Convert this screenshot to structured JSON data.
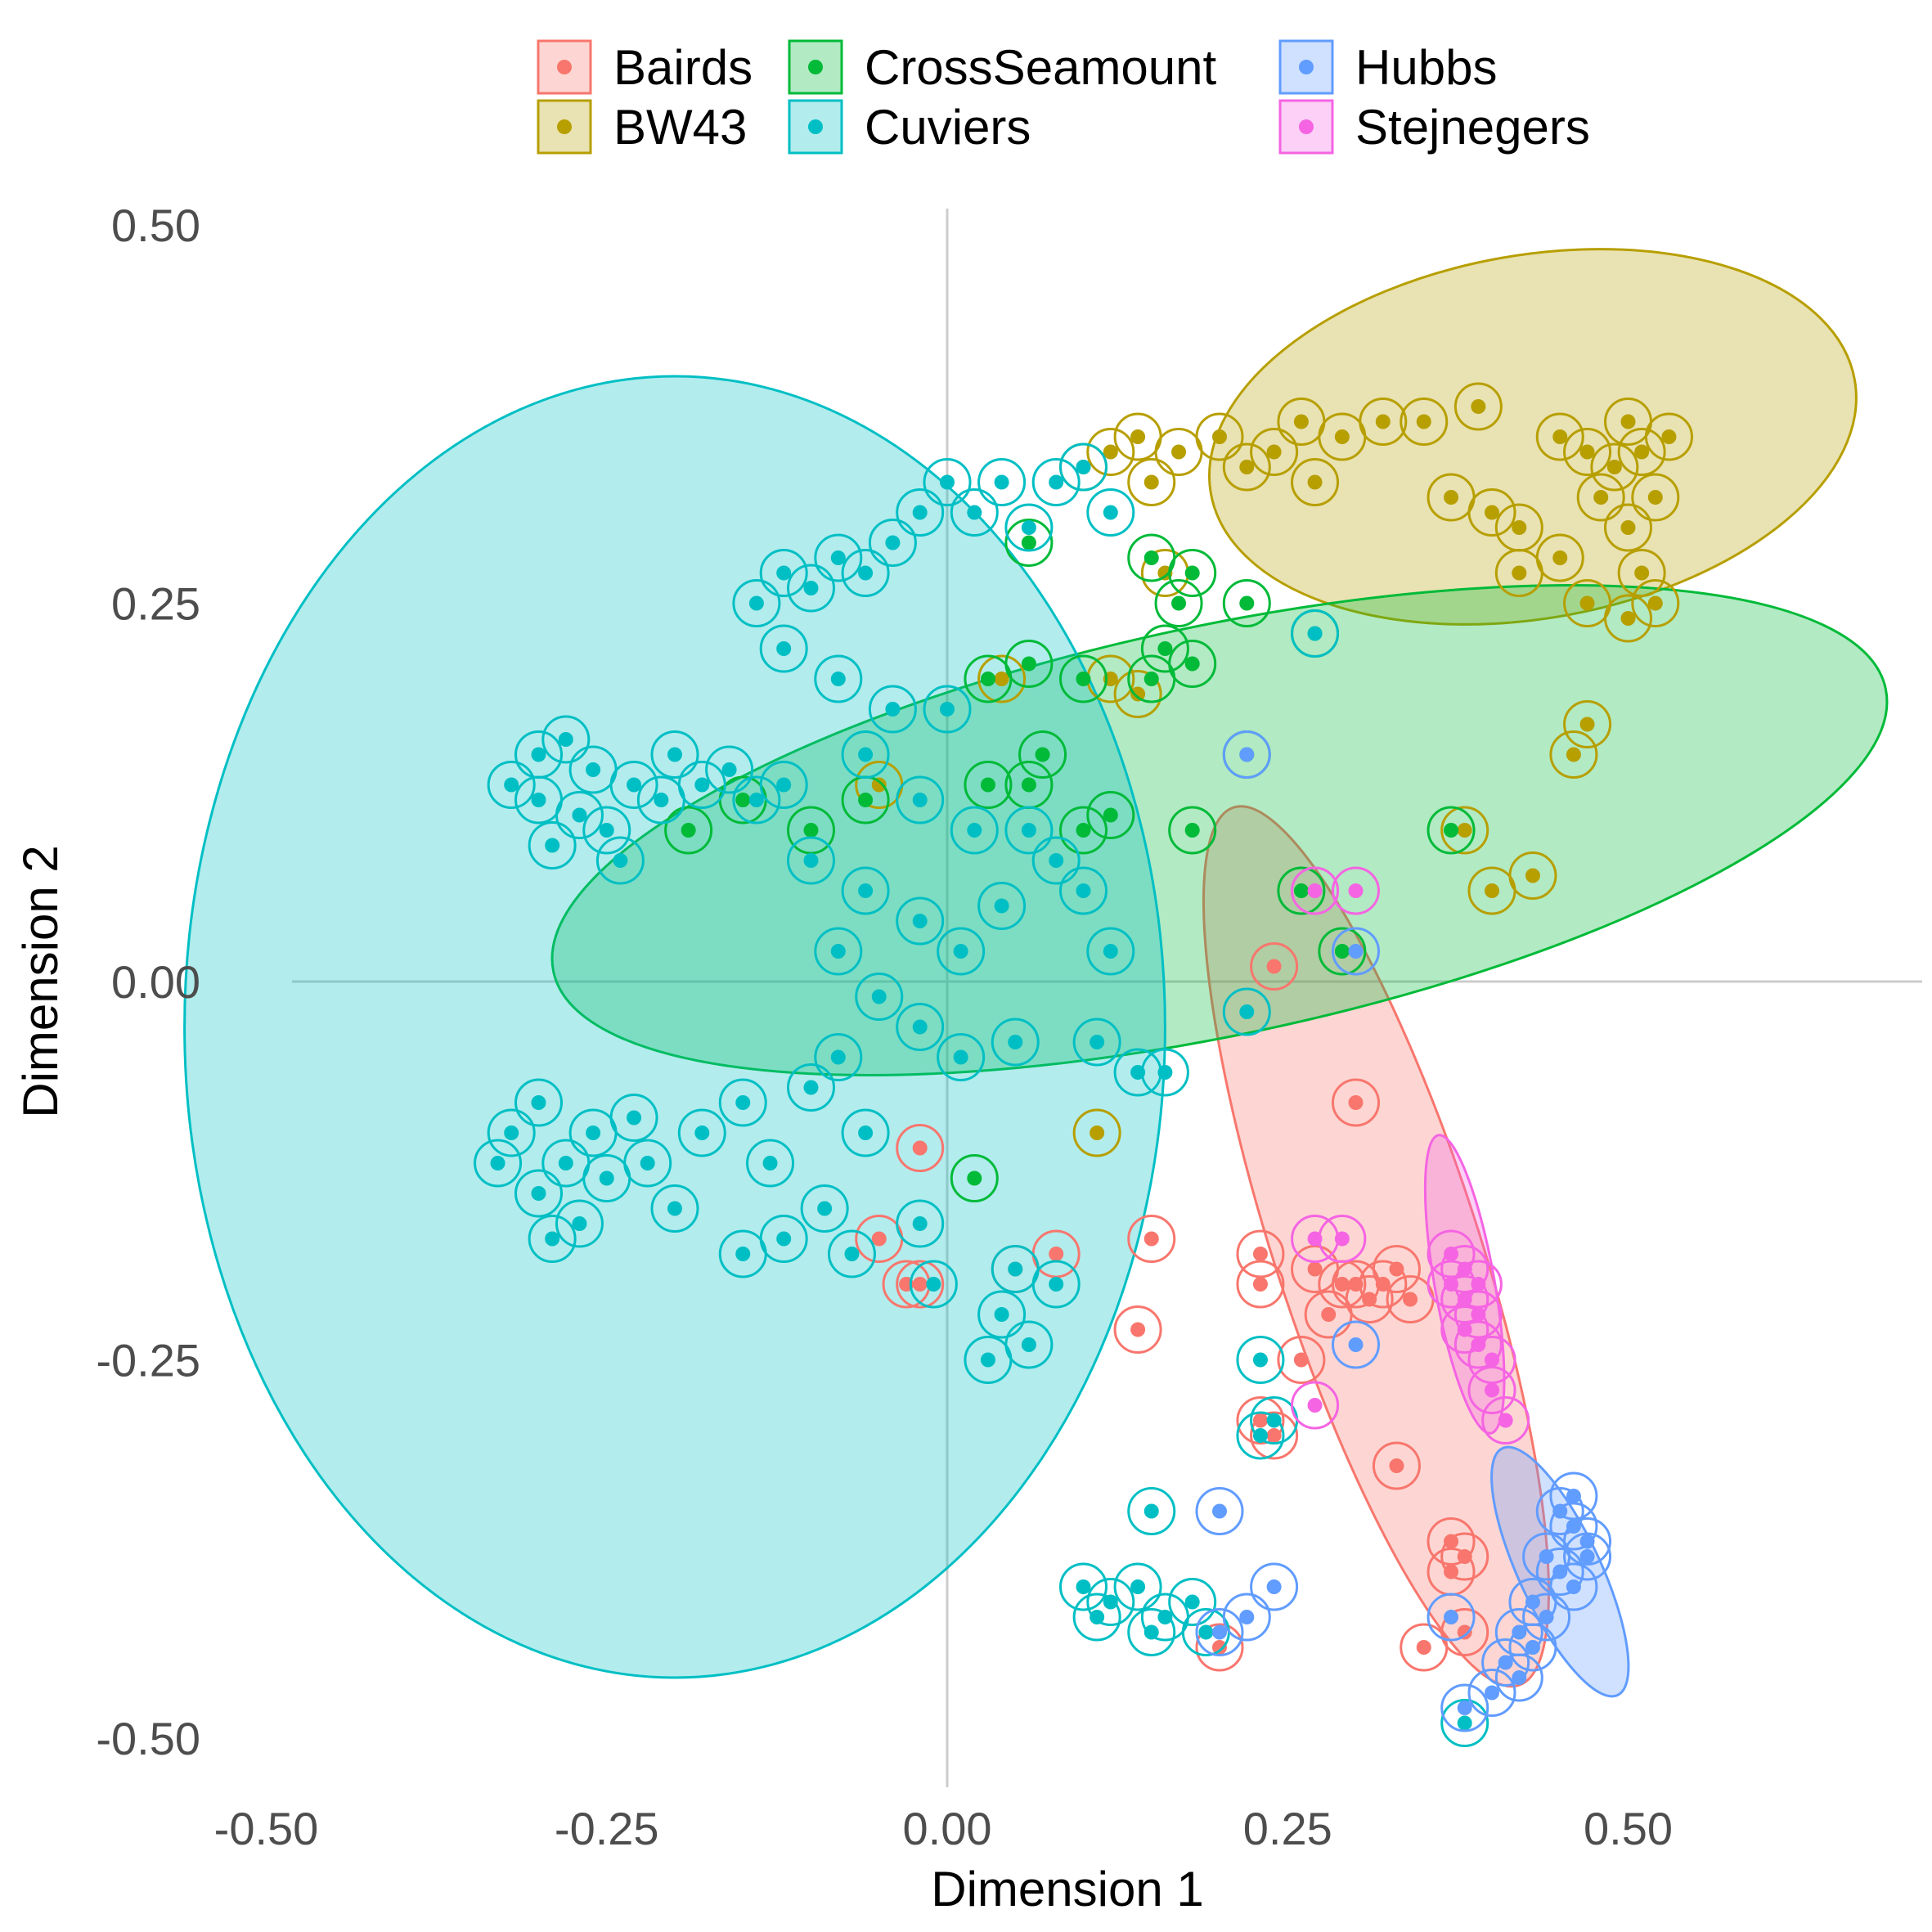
{
  "chart_data": {
    "type": "scatter",
    "title": "",
    "xlabel": "Dimension 1",
    "ylabel": "Dimension 2",
    "xlim": [
      -0.5,
      0.5
    ],
    "ylim": [
      -0.5,
      0.5
    ],
    "x_ticks": [
      "-0.50",
      "-0.25",
      "0.00",
      "0.25",
      "0.50"
    ],
    "y_ticks": [
      "0.50",
      "0.25",
      "0.00",
      "-0.25",
      "-0.50"
    ],
    "grid": false,
    "zero_lines": true,
    "legend_position": "top",
    "series": [
      {
        "name": "Bairds",
        "color": "#F8766D",
        "ellipse": {
          "cx": 0.315,
          "cy": -0.175,
          "rx": 0.075,
          "ry": 0.305,
          "angle": 18
        },
        "points": [
          [
            -0.02,
            -0.11
          ],
          [
            -0.05,
            -0.17
          ],
          [
            -0.03,
            -0.2
          ],
          [
            -0.02,
            -0.2
          ],
          [
            0.05,
            -0.19
          ],
          [
            0.08,
            -0.18
          ],
          [
            0.15,
            -0.17
          ],
          [
            0.14,
            -0.23
          ],
          [
            0.3,
            -0.08
          ],
          [
            0.23,
            -0.18
          ],
          [
            0.23,
            -0.2
          ],
          [
            0.27,
            -0.19
          ],
          [
            0.29,
            -0.2
          ],
          [
            0.3,
            -0.2
          ],
          [
            0.31,
            -0.21
          ],
          [
            0.32,
            -0.2
          ],
          [
            0.33,
            -0.19
          ],
          [
            0.34,
            -0.21
          ],
          [
            0.28,
            -0.22
          ],
          [
            0.26,
            -0.25
          ],
          [
            0.23,
            -0.29
          ],
          [
            0.24,
            -0.3
          ],
          [
            0.33,
            -0.32
          ],
          [
            0.37,
            -0.37
          ],
          [
            0.38,
            -0.38
          ],
          [
            0.35,
            -0.44
          ],
          [
            0.38,
            -0.43
          ],
          [
            0.37,
            -0.39
          ],
          [
            0.2,
            -0.44
          ],
          [
            0.24,
            0.01
          ]
        ]
      },
      {
        "name": "BW43",
        "color": "#B79F00",
        "ellipse": {
          "cx": 0.43,
          "cy": 0.36,
          "rx": 0.24,
          "ry": 0.12,
          "angle": 10
        },
        "points": [
          [
            0.1,
            0.34
          ],
          [
            0.12,
            0.35
          ],
          [
            0.14,
            0.36
          ],
          [
            0.15,
            0.33
          ],
          [
            0.17,
            0.35
          ],
          [
            0.2,
            0.36
          ],
          [
            0.22,
            0.34
          ],
          [
            0.24,
            0.35
          ],
          [
            0.26,
            0.37
          ],
          [
            0.27,
            0.33
          ],
          [
            0.29,
            0.36
          ],
          [
            0.32,
            0.37
          ],
          [
            0.35,
            0.37
          ],
          [
            0.37,
            0.32
          ],
          [
            0.39,
            0.38
          ],
          [
            0.4,
            0.31
          ],
          [
            0.42,
            0.3
          ],
          [
            0.45,
            0.36
          ],
          [
            0.47,
            0.35
          ],
          [
            0.49,
            0.34
          ],
          [
            0.5,
            0.37
          ],
          [
            0.51,
            0.35
          ],
          [
            0.52,
            0.32
          ],
          [
            0.53,
            0.36
          ],
          [
            0.48,
            0.32
          ],
          [
            0.5,
            0.3
          ],
          [
            0.51,
            0.27
          ],
          [
            0.52,
            0.25
          ],
          [
            0.45,
            0.28
          ],
          [
            0.42,
            0.27
          ],
          [
            0.47,
            0.25
          ],
          [
            0.5,
            0.24
          ],
          [
            0.47,
            0.17
          ],
          [
            0.46,
            0.15
          ],
          [
            0.4,
            0.06
          ],
          [
            0.43,
            0.07
          ],
          [
            0.38,
            0.1
          ],
          [
            0.12,
            0.2
          ],
          [
            0.14,
            0.19
          ],
          [
            0.04,
            0.2
          ],
          [
            -0.05,
            0.13
          ],
          [
            0.11,
            -0.1
          ],
          [
            0.16,
            0.27
          ]
        ]
      },
      {
        "name": "CrossSeamount",
        "color": "#00BA38",
        "ellipse": {
          "cx": 0.2,
          "cy": 0.1,
          "rx": 0.5,
          "ry": 0.135,
          "angle": 12
        },
        "points": [
          [
            0.06,
            0.29
          ],
          [
            0.15,
            0.28
          ],
          [
            0.18,
            0.27
          ],
          [
            0.17,
            0.25
          ],
          [
            0.16,
            0.22
          ],
          [
            0.18,
            0.21
          ],
          [
            0.15,
            0.2
          ],
          [
            0.1,
            0.2
          ],
          [
            0.06,
            0.21
          ],
          [
            0.03,
            0.2
          ],
          [
            0.27,
            0.23
          ],
          [
            0.22,
            0.15
          ],
          [
            0.07,
            0.15
          ],
          [
            0.06,
            0.13
          ],
          [
            0.03,
            0.13
          ],
          [
            -0.06,
            0.12
          ],
          [
            -0.1,
            0.1
          ],
          [
            -0.15,
            0.12
          ],
          [
            -0.19,
            0.1
          ],
          [
            0.1,
            0.1
          ],
          [
            0.12,
            0.11
          ],
          [
            0.18,
            0.1
          ],
          [
            0.37,
            0.1
          ],
          [
            0.26,
            0.06
          ],
          [
            0.29,
            0.02
          ],
          [
            0.02,
            -0.13
          ],
          [
            0.22,
            0.25
          ]
        ]
      },
      {
        "name": "Cuviers",
        "color": "#00BFC4",
        "ellipse": {
          "cx": -0.2,
          "cy": -0.03,
          "rx": 0.36,
          "ry": 0.43,
          "angle": 0
        },
        "points": [
          [
            -0.3,
            0.15
          ],
          [
            -0.28,
            0.16
          ],
          [
            -0.26,
            0.14
          ],
          [
            -0.3,
            0.12
          ],
          [
            -0.27,
            0.11
          ],
          [
            -0.29,
            0.09
          ],
          [
            -0.25,
            0.1
          ],
          [
            -0.23,
            0.13
          ],
          [
            -0.21,
            0.12
          ],
          [
            -0.2,
            0.15
          ],
          [
            -0.18,
            0.13
          ],
          [
            -0.16,
            0.14
          ],
          [
            -0.14,
            0.12
          ],
          [
            -0.12,
            0.13
          ],
          [
            -0.32,
            0.13
          ],
          [
            -0.24,
            0.08
          ],
          [
            -0.3,
            -0.08
          ],
          [
            -0.32,
            -0.1
          ],
          [
            -0.28,
            -0.12
          ],
          [
            -0.3,
            -0.14
          ],
          [
            -0.26,
            -0.1
          ],
          [
            -0.25,
            -0.13
          ],
          [
            -0.27,
            -0.16
          ],
          [
            -0.23,
            -0.09
          ],
          [
            -0.22,
            -0.12
          ],
          [
            -0.2,
            -0.15
          ],
          [
            -0.18,
            -0.1
          ],
          [
            -0.15,
            -0.08
          ],
          [
            -0.13,
            -0.12
          ],
          [
            -0.1,
            -0.07
          ],
          [
            -0.08,
            -0.05
          ],
          [
            -0.06,
            -0.1
          ],
          [
            -0.12,
            -0.17
          ],
          [
            -0.09,
            -0.15
          ],
          [
            -0.07,
            -0.18
          ],
          [
            -0.15,
            -0.18
          ],
          [
            -0.33,
            -0.12
          ],
          [
            -0.29,
            -0.17
          ],
          [
            -0.14,
            0.25
          ],
          [
            -0.12,
            0.27
          ],
          [
            -0.1,
            0.26
          ],
          [
            -0.08,
            0.28
          ],
          [
            -0.06,
            0.27
          ],
          [
            -0.04,
            0.29
          ],
          [
            -0.02,
            0.31
          ],
          [
            0.0,
            0.33
          ],
          [
            0.02,
            0.31
          ],
          [
            0.04,
            0.33
          ],
          [
            0.06,
            0.3
          ],
          [
            0.08,
            0.33
          ],
          [
            0.1,
            0.34
          ],
          [
            -0.12,
            0.22
          ],
          [
            -0.08,
            0.2
          ],
          [
            -0.04,
            0.18
          ],
          [
            0.0,
            0.18
          ],
          [
            -0.06,
            0.15
          ],
          [
            -0.02,
            0.12
          ],
          [
            0.02,
            0.1
          ],
          [
            -0.1,
            0.08
          ],
          [
            -0.06,
            0.06
          ],
          [
            -0.02,
            0.04
          ],
          [
            0.01,
            0.02
          ],
          [
            0.04,
            0.05
          ],
          [
            0.06,
            0.1
          ],
          [
            0.08,
            0.08
          ],
          [
            -0.08,
            0.02
          ],
          [
            -0.05,
            -0.01
          ],
          [
            -0.02,
            -0.03
          ],
          [
            0.01,
            -0.05
          ],
          [
            0.05,
            -0.04
          ],
          [
            0.1,
            0.06
          ],
          [
            0.12,
            0.02
          ],
          [
            0.11,
            -0.04
          ],
          [
            0.14,
            -0.06
          ],
          [
            0.16,
            -0.06
          ],
          [
            0.05,
            -0.19
          ],
          [
            0.04,
            -0.22
          ],
          [
            0.06,
            -0.24
          ],
          [
            0.03,
            -0.25
          ],
          [
            -0.02,
            -0.16
          ],
          [
            -0.01,
            -0.2
          ],
          [
            0.08,
            -0.2
          ],
          [
            0.1,
            -0.4
          ],
          [
            0.12,
            -0.41
          ],
          [
            0.14,
            -0.4
          ],
          [
            0.16,
            -0.42
          ],
          [
            0.18,
            -0.41
          ],
          [
            0.11,
            -0.42
          ],
          [
            0.15,
            -0.43
          ],
          [
            0.19,
            -0.43
          ],
          [
            0.15,
            -0.35
          ],
          [
            0.23,
            -0.25
          ],
          [
            0.23,
            -0.3
          ],
          [
            0.24,
            -0.29
          ],
          [
            0.22,
            -0.02
          ],
          [
            0.27,
            0.23
          ],
          [
            0.38,
            -0.49
          ],
          [
            0.12,
            0.31
          ]
        ]
      },
      {
        "name": "Hubbs",
        "color": "#619CFF",
        "ellipse": {
          "cx": 0.45,
          "cy": -0.39,
          "rx": 0.03,
          "ry": 0.09,
          "angle": 25
        },
        "points": [
          [
            0.45,
            -0.35
          ],
          [
            0.46,
            -0.36
          ],
          [
            0.47,
            -0.37
          ],
          [
            0.44,
            -0.38
          ],
          [
            0.45,
            -0.39
          ],
          [
            0.46,
            -0.4
          ],
          [
            0.43,
            -0.41
          ],
          [
            0.44,
            -0.42
          ],
          [
            0.42,
            -0.43
          ],
          [
            0.43,
            -0.44
          ],
          [
            0.41,
            -0.45
          ],
          [
            0.42,
            -0.46
          ],
          [
            0.4,
            -0.47
          ],
          [
            0.38,
            -0.48
          ],
          [
            0.46,
            -0.34
          ],
          [
            0.47,
            -0.38
          ],
          [
            0.3,
            -0.24
          ],
          [
            0.2,
            -0.35
          ],
          [
            0.24,
            -0.4
          ],
          [
            0.22,
            -0.42
          ],
          [
            0.2,
            -0.43
          ],
          [
            0.22,
            0.15
          ],
          [
            0.3,
            0.02
          ],
          [
            0.37,
            -0.42
          ]
        ]
      },
      {
        "name": "Stejnegers",
        "color": "#F564E3",
        "ellipse": {
          "cx": 0.38,
          "cy": -0.2,
          "rx": 0.022,
          "ry": 0.1,
          "angle": 10
        },
        "points": [
          [
            0.37,
            -0.18
          ],
          [
            0.38,
            -0.19
          ],
          [
            0.39,
            -0.2
          ],
          [
            0.38,
            -0.21
          ],
          [
            0.39,
            -0.22
          ],
          [
            0.38,
            -0.23
          ],
          [
            0.39,
            -0.24
          ],
          [
            0.4,
            -0.25
          ],
          [
            0.4,
            -0.27
          ],
          [
            0.41,
            -0.29
          ],
          [
            0.27,
            -0.17
          ],
          [
            0.29,
            -0.17
          ],
          [
            0.27,
            -0.28
          ],
          [
            0.27,
            0.06
          ],
          [
            0.3,
            0.06
          ],
          [
            0.37,
            -0.2
          ]
        ]
      }
    ]
  }
}
